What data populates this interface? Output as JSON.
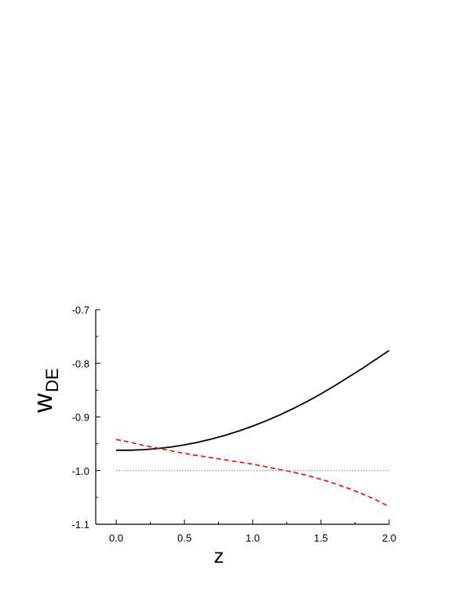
{
  "chart_data": {
    "type": "line",
    "title": "",
    "xlabel": "z",
    "ylabel_main": "w",
    "ylabel_sub": "DE",
    "xlim": [
      -0.15,
      2.0
    ],
    "ylim": [
      -1.1,
      -0.7
    ],
    "xticks": [
      0.0,
      0.5,
      1.0,
      1.5,
      2.0
    ],
    "xtick_labels": [
      "0.0",
      "0.5",
      "1.0",
      "1.5",
      "2.0"
    ],
    "yticks": [
      -0.7,
      -0.8,
      -0.9,
      -1.0,
      -1.1
    ],
    "ytick_labels": [
      "-0.7",
      "-0.8",
      "-0.9",
      "-1.0",
      "-1.1"
    ],
    "grid": false,
    "legend": "none",
    "series": [
      {
        "style": "solid",
        "color": "#000000",
        "x": [
          0.0,
          0.1,
          0.2,
          0.3,
          0.4,
          0.5,
          0.6,
          0.7,
          0.8,
          0.9,
          1.0,
          1.1,
          1.2,
          1.3,
          1.4,
          1.5,
          1.6,
          1.7,
          1.8,
          1.9,
          2.0
        ],
        "y": [
          -0.962,
          -0.962,
          -0.961,
          -0.959,
          -0.956,
          -0.952,
          -0.947,
          -0.941,
          -0.934,
          -0.926,
          -0.917,
          -0.907,
          -0.896,
          -0.884,
          -0.871,
          -0.857,
          -0.842,
          -0.826,
          -0.81,
          -0.793,
          -0.776
        ]
      },
      {
        "style": "dashed",
        "color": "#ff0000",
        "x": [
          0.0,
          0.1,
          0.2,
          0.3,
          0.4,
          0.5,
          0.6,
          0.7,
          0.8,
          0.9,
          1.0,
          1.1,
          1.2,
          1.3,
          1.4,
          1.5,
          1.6,
          1.7,
          1.8,
          1.9,
          2.0
        ],
        "y": [
          -0.942,
          -0.947,
          -0.953,
          -0.958,
          -0.963,
          -0.968,
          -0.972,
          -0.976,
          -0.98,
          -0.984,
          -0.988,
          -0.993,
          -0.998,
          -1.003,
          -1.009,
          -1.016,
          -1.024,
          -1.033,
          -1.043,
          -1.054,
          -1.067
        ]
      },
      {
        "style": "dotted",
        "color": "#808080",
        "x": [
          0.0,
          2.0
        ],
        "y": [
          -1.0,
          -1.0
        ]
      }
    ]
  }
}
